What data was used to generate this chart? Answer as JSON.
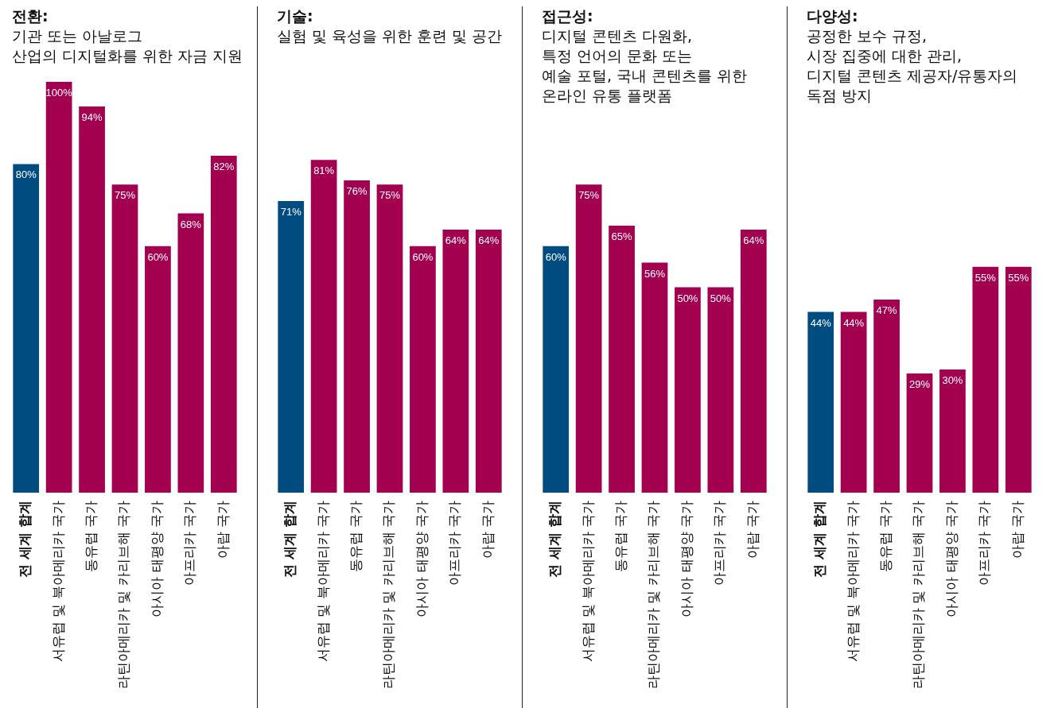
{
  "chart_data": [
    {
      "type": "bar",
      "title": "전환:",
      "subtitle": "기관 또는 아날로그\n산업의 디지털화를 위한 자금 지원",
      "categories": [
        "전 세계 합계",
        "서유럽 및 북아메리카 국가",
        "동유럽 국가",
        "라틴아메리카 및 카리브해 국가",
        "아시아 태평양 국가",
        "아프리카 국가",
        "아랍 국가"
      ],
      "values": [
        80,
        100,
        94,
        75,
        60,
        68,
        82
      ],
      "value_labels": [
        "80%",
        "100%",
        "94%",
        "75%",
        "60%",
        "68%",
        "82%"
      ],
      "colors": [
        "#004b7f",
        "#a3004f",
        "#a3004f",
        "#a3004f",
        "#a3004f",
        "#a3004f",
        "#a3004f"
      ],
      "tick_labels": "x"
    },
    {
      "type": "bar",
      "title": "기술:",
      "subtitle": "실험 및 육성을 위한 훈련 및 공간",
      "categories": [
        "전 세계 합계",
        "서유럽 및 북아메리카 국가",
        "동유럽 국가",
        "라틴아메리카 및 카리브해 국가",
        "아시아 태평양 국가",
        "아프리카 국가",
        "아랍 국가"
      ],
      "values": [
        71,
        81,
        76,
        75,
        60,
        64,
        64
      ],
      "value_labels": [
        "71%",
        "81%",
        "76%",
        "75%",
        "60%",
        "64%",
        "64%"
      ],
      "colors": [
        "#004b7f",
        "#a3004f",
        "#a3004f",
        "#a3004f",
        "#a3004f",
        "#a3004f",
        "#a3004f"
      ],
      "tick_labels": "x"
    },
    {
      "type": "bar",
      "title": "접근성:",
      "subtitle": "디지털 콘텐츠 다원화,\n특정 언어의 문화 또는\n예술 포털, 국내 콘텐츠를 위한\n온라인 유통 플랫폼",
      "categories": [
        "전 세계 합계",
        "서유럽 및 북아메리카 국가",
        "동유럽 국가",
        "라틴아메리카 및 카리브해 국가",
        "아시아 태평양 국가",
        "아프리카 국가",
        "아랍 국가"
      ],
      "values": [
        60,
        75,
        65,
        56,
        50,
        50,
        64
      ],
      "value_labels": [
        "60%",
        "75%",
        "65%",
        "56%",
        "50%",
        "50%",
        "64%"
      ],
      "colors": [
        "#004b7f",
        "#a3004f",
        "#a3004f",
        "#a3004f",
        "#a3004f",
        "#a3004f",
        "#a3004f"
      ],
      "tick_labels": "x"
    },
    {
      "type": "bar",
      "title": "다양성:",
      "subtitle": "공정한 보수 규정,\n시장 집중에 대한 관리,\n디지털 콘텐츠 제공자/유통자의\n독점 방지",
      "categories": [
        "전 세계 합계",
        "서유럽 및 북아메리카 국가",
        "동유럽 국가",
        "라틴아메리카 및 카리브해 국가",
        "아시아 태평양 국가",
        "아프리카 국가",
        "아랍 국가"
      ],
      "values": [
        44,
        44,
        47,
        29,
        30,
        55,
        55
      ],
      "value_labels": [
        "44%",
        "44%",
        "47%",
        "29%",
        "30%",
        "55%",
        "55%"
      ],
      "colors": [
        "#004b7f",
        "#a3004f",
        "#a3004f",
        "#a3004f",
        "#a3004f",
        "#a3004f",
        "#a3004f"
      ],
      "tick_labels": "x"
    }
  ]
}
